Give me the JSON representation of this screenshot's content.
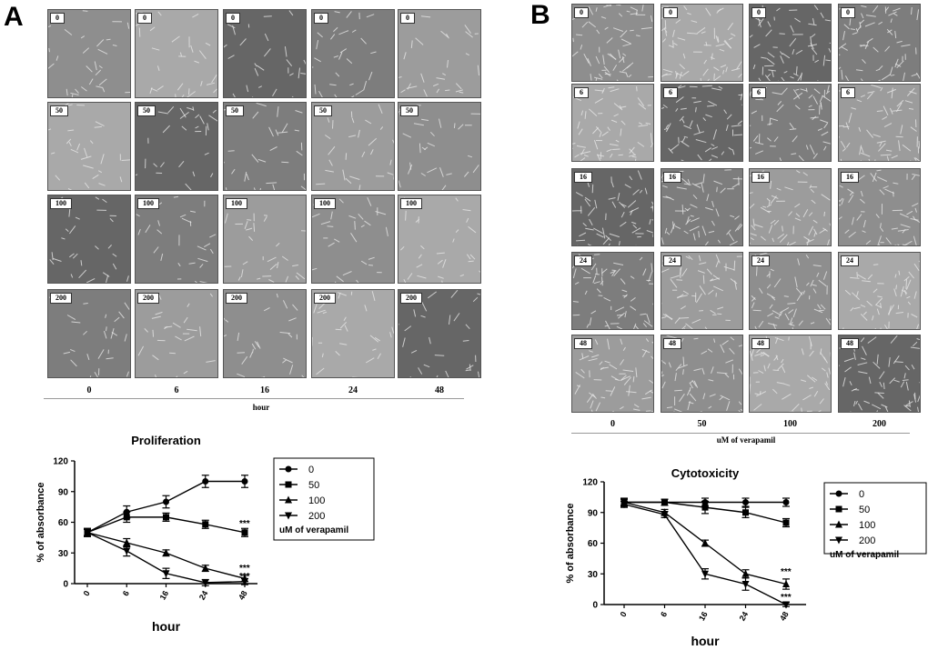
{
  "panelA": {
    "letter": "A",
    "tile_labels": [
      "0",
      "50",
      "100",
      "200"
    ],
    "col_labels": [
      "0",
      "6",
      "16",
      "24",
      "48"
    ],
    "axis_caption": "hour"
  },
  "panelB": {
    "letter": "B",
    "tile_labels": [
      "0",
      "6",
      "16",
      "24",
      "48"
    ],
    "col_labels": [
      "0",
      "50",
      "100",
      "200"
    ],
    "axis_caption": "uM of verapamil"
  },
  "colors": {
    "tile_bg": "#8e8e8e",
    "tile_light": "#a9a9a9",
    "tile_dark": "#666666",
    "line": "#000000"
  },
  "chart_data": [
    {
      "type": "line",
      "title": "Proliferation",
      "xlabel": "hour",
      "ylabel": "% of absorbance",
      "categories": [
        "0",
        "6",
        "16",
        "24",
        "48"
      ],
      "yticks": [
        "0",
        "30",
        "60",
        "90",
        "120"
      ],
      "ylim": [
        0,
        120
      ],
      "legend_title": "uM of verapamil",
      "series": [
        {
          "name": "0",
          "marker": "circle",
          "values": [
            50,
            70,
            80,
            100,
            100
          ],
          "errors": [
            4,
            6,
            6,
            6,
            6
          ]
        },
        {
          "name": "50",
          "marker": "square",
          "values": [
            50,
            65,
            65,
            58,
            50
          ],
          "errors": [
            4,
            5,
            4,
            4,
            4
          ]
        },
        {
          "name": "100",
          "marker": "triangle-up",
          "values": [
            50,
            40,
            30,
            15,
            5
          ],
          "errors": [
            3,
            4,
            3,
            3,
            3
          ]
        },
        {
          "name": "200",
          "marker": "triangle-down",
          "values": [
            50,
            32,
            10,
            1,
            2
          ],
          "errors": [
            3,
            5,
            5,
            3,
            3
          ]
        }
      ],
      "annotations": [
        "***",
        "***",
        "***"
      ]
    },
    {
      "type": "line",
      "title": "Cytotoxicity",
      "xlabel": "hour",
      "ylabel": "% of absorbance",
      "categories": [
        "0",
        "6",
        "16",
        "24",
        "48"
      ],
      "yticks": [
        "0",
        "30",
        "60",
        "90",
        "120"
      ],
      "ylim": [
        0,
        120
      ],
      "legend_title": "uM of verapamil",
      "series": [
        {
          "name": "0",
          "marker": "circle",
          "values": [
            100,
            100,
            100,
            100,
            100
          ],
          "errors": [
            3,
            3,
            4,
            4,
            4
          ]
        },
        {
          "name": "50",
          "marker": "square",
          "values": [
            100,
            100,
            95,
            90,
            80
          ],
          "errors": [
            3,
            3,
            6,
            5,
            4
          ]
        },
        {
          "name": "100",
          "marker": "triangle-up",
          "values": [
            100,
            90,
            60,
            30,
            20
          ],
          "errors": [
            4,
            3,
            3,
            4,
            5
          ]
        },
        {
          "name": "200",
          "marker": "triangle-down",
          "values": [
            98,
            88,
            30,
            20,
            0
          ],
          "errors": [
            3,
            3,
            5,
            6,
            2
          ]
        }
      ],
      "annotations": [
        "***",
        "***"
      ]
    }
  ]
}
